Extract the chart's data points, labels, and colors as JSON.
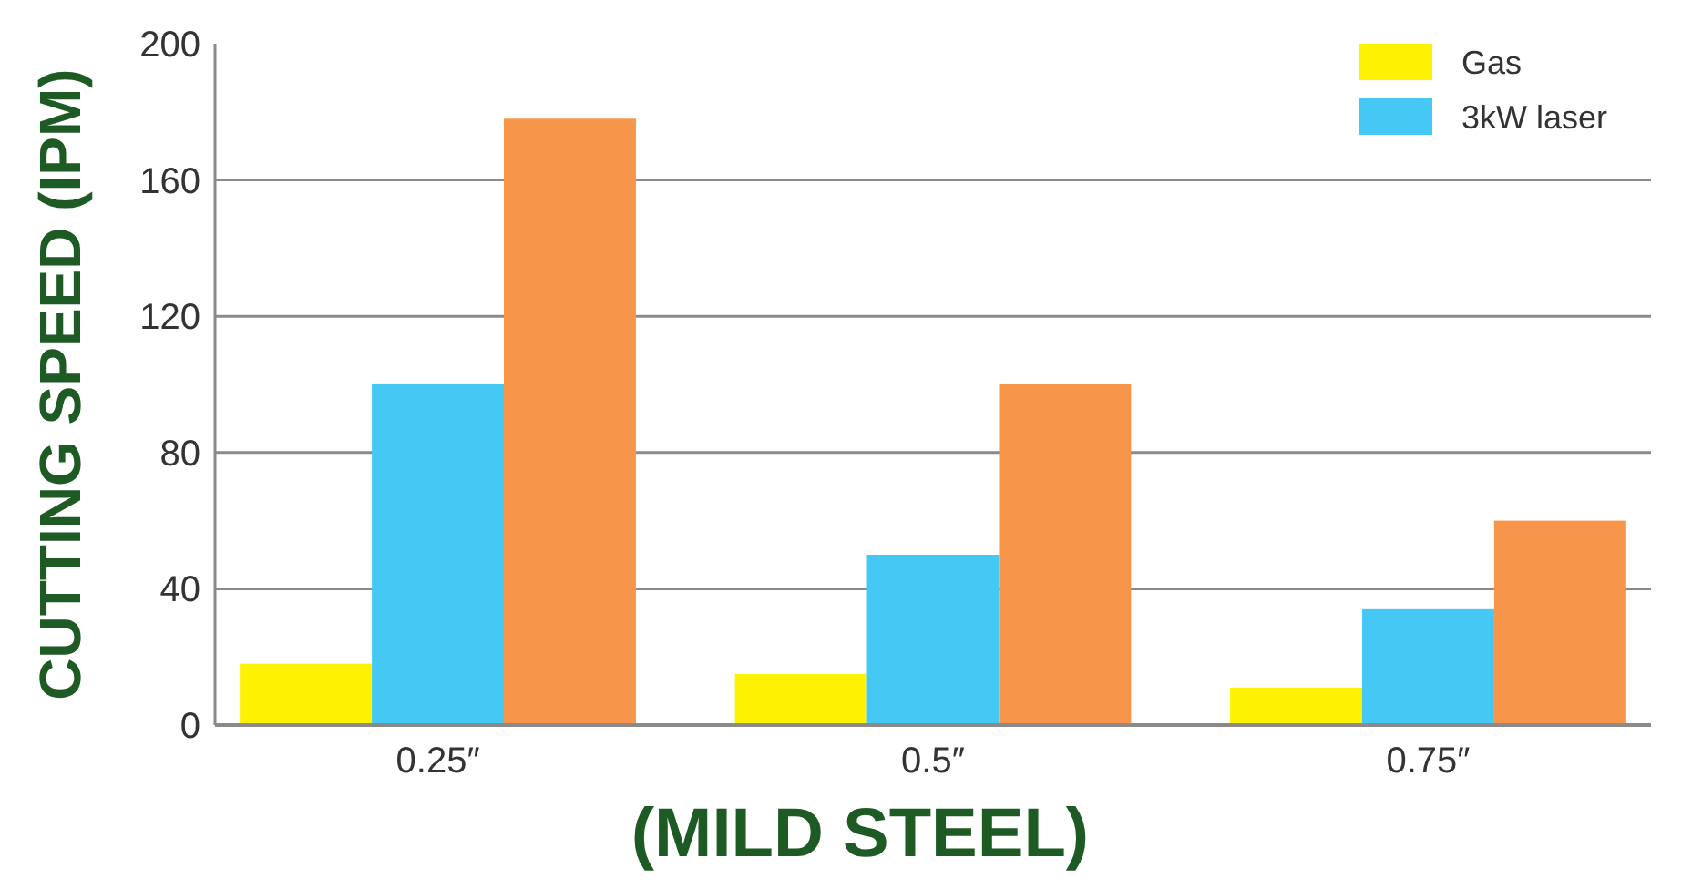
{
  "chart_data": {
    "type": "bar",
    "xlabel": "(MILD STEEL)",
    "ylabel": "CUTTING SPEED (IPM)",
    "categories": [
      "0.25″",
      "0.5″",
      "0.75″"
    ],
    "series": [
      {
        "name": "Gas",
        "color": "#fff200",
        "values": [
          18,
          15,
          11
        ]
      },
      {
        "name": "3kW laser",
        "color": "#45c8f4",
        "values": [
          100,
          50,
          34
        ]
      },
      {
        "color": "#f7964a",
        "values": [
          178,
          100,
          60
        ]
      }
    ],
    "ylim": [
      0,
      200
    ],
    "yticks": [
      0,
      40,
      80,
      120,
      160,
      200
    ],
    "grid": "y",
    "legend": "top right"
  }
}
